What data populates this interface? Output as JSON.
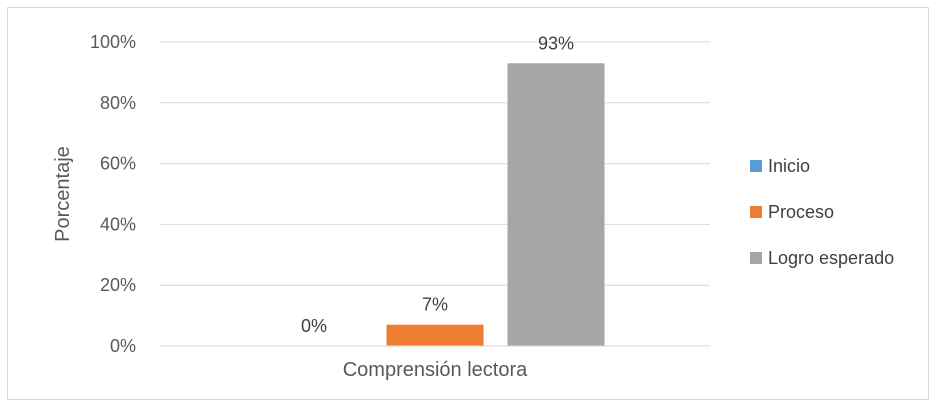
{
  "chart_data": {
    "type": "bar",
    "categories": [
      "Comprensión lectora"
    ],
    "series": [
      {
        "name": "Inicio",
        "values": [
          0
        ],
        "label": "0%",
        "color": "#5b9bd5"
      },
      {
        "name": "Proceso",
        "values": [
          7
        ],
        "label": "7%",
        "color": "#ed7d31"
      },
      {
        "name": "Logro esperado",
        "values": [
          93
        ],
        "label": "93%",
        "color": "#a5a5a5"
      }
    ],
    "ylabel": "Porcentaje",
    "ylim": [
      0,
      100
    ],
    "yticks": [
      0,
      20,
      40,
      60,
      80,
      100
    ],
    "ytick_labels": [
      "0%",
      "20%",
      "40%",
      "60%",
      "80%",
      "100%"
    ],
    "grid": true,
    "legend_position": "right"
  }
}
